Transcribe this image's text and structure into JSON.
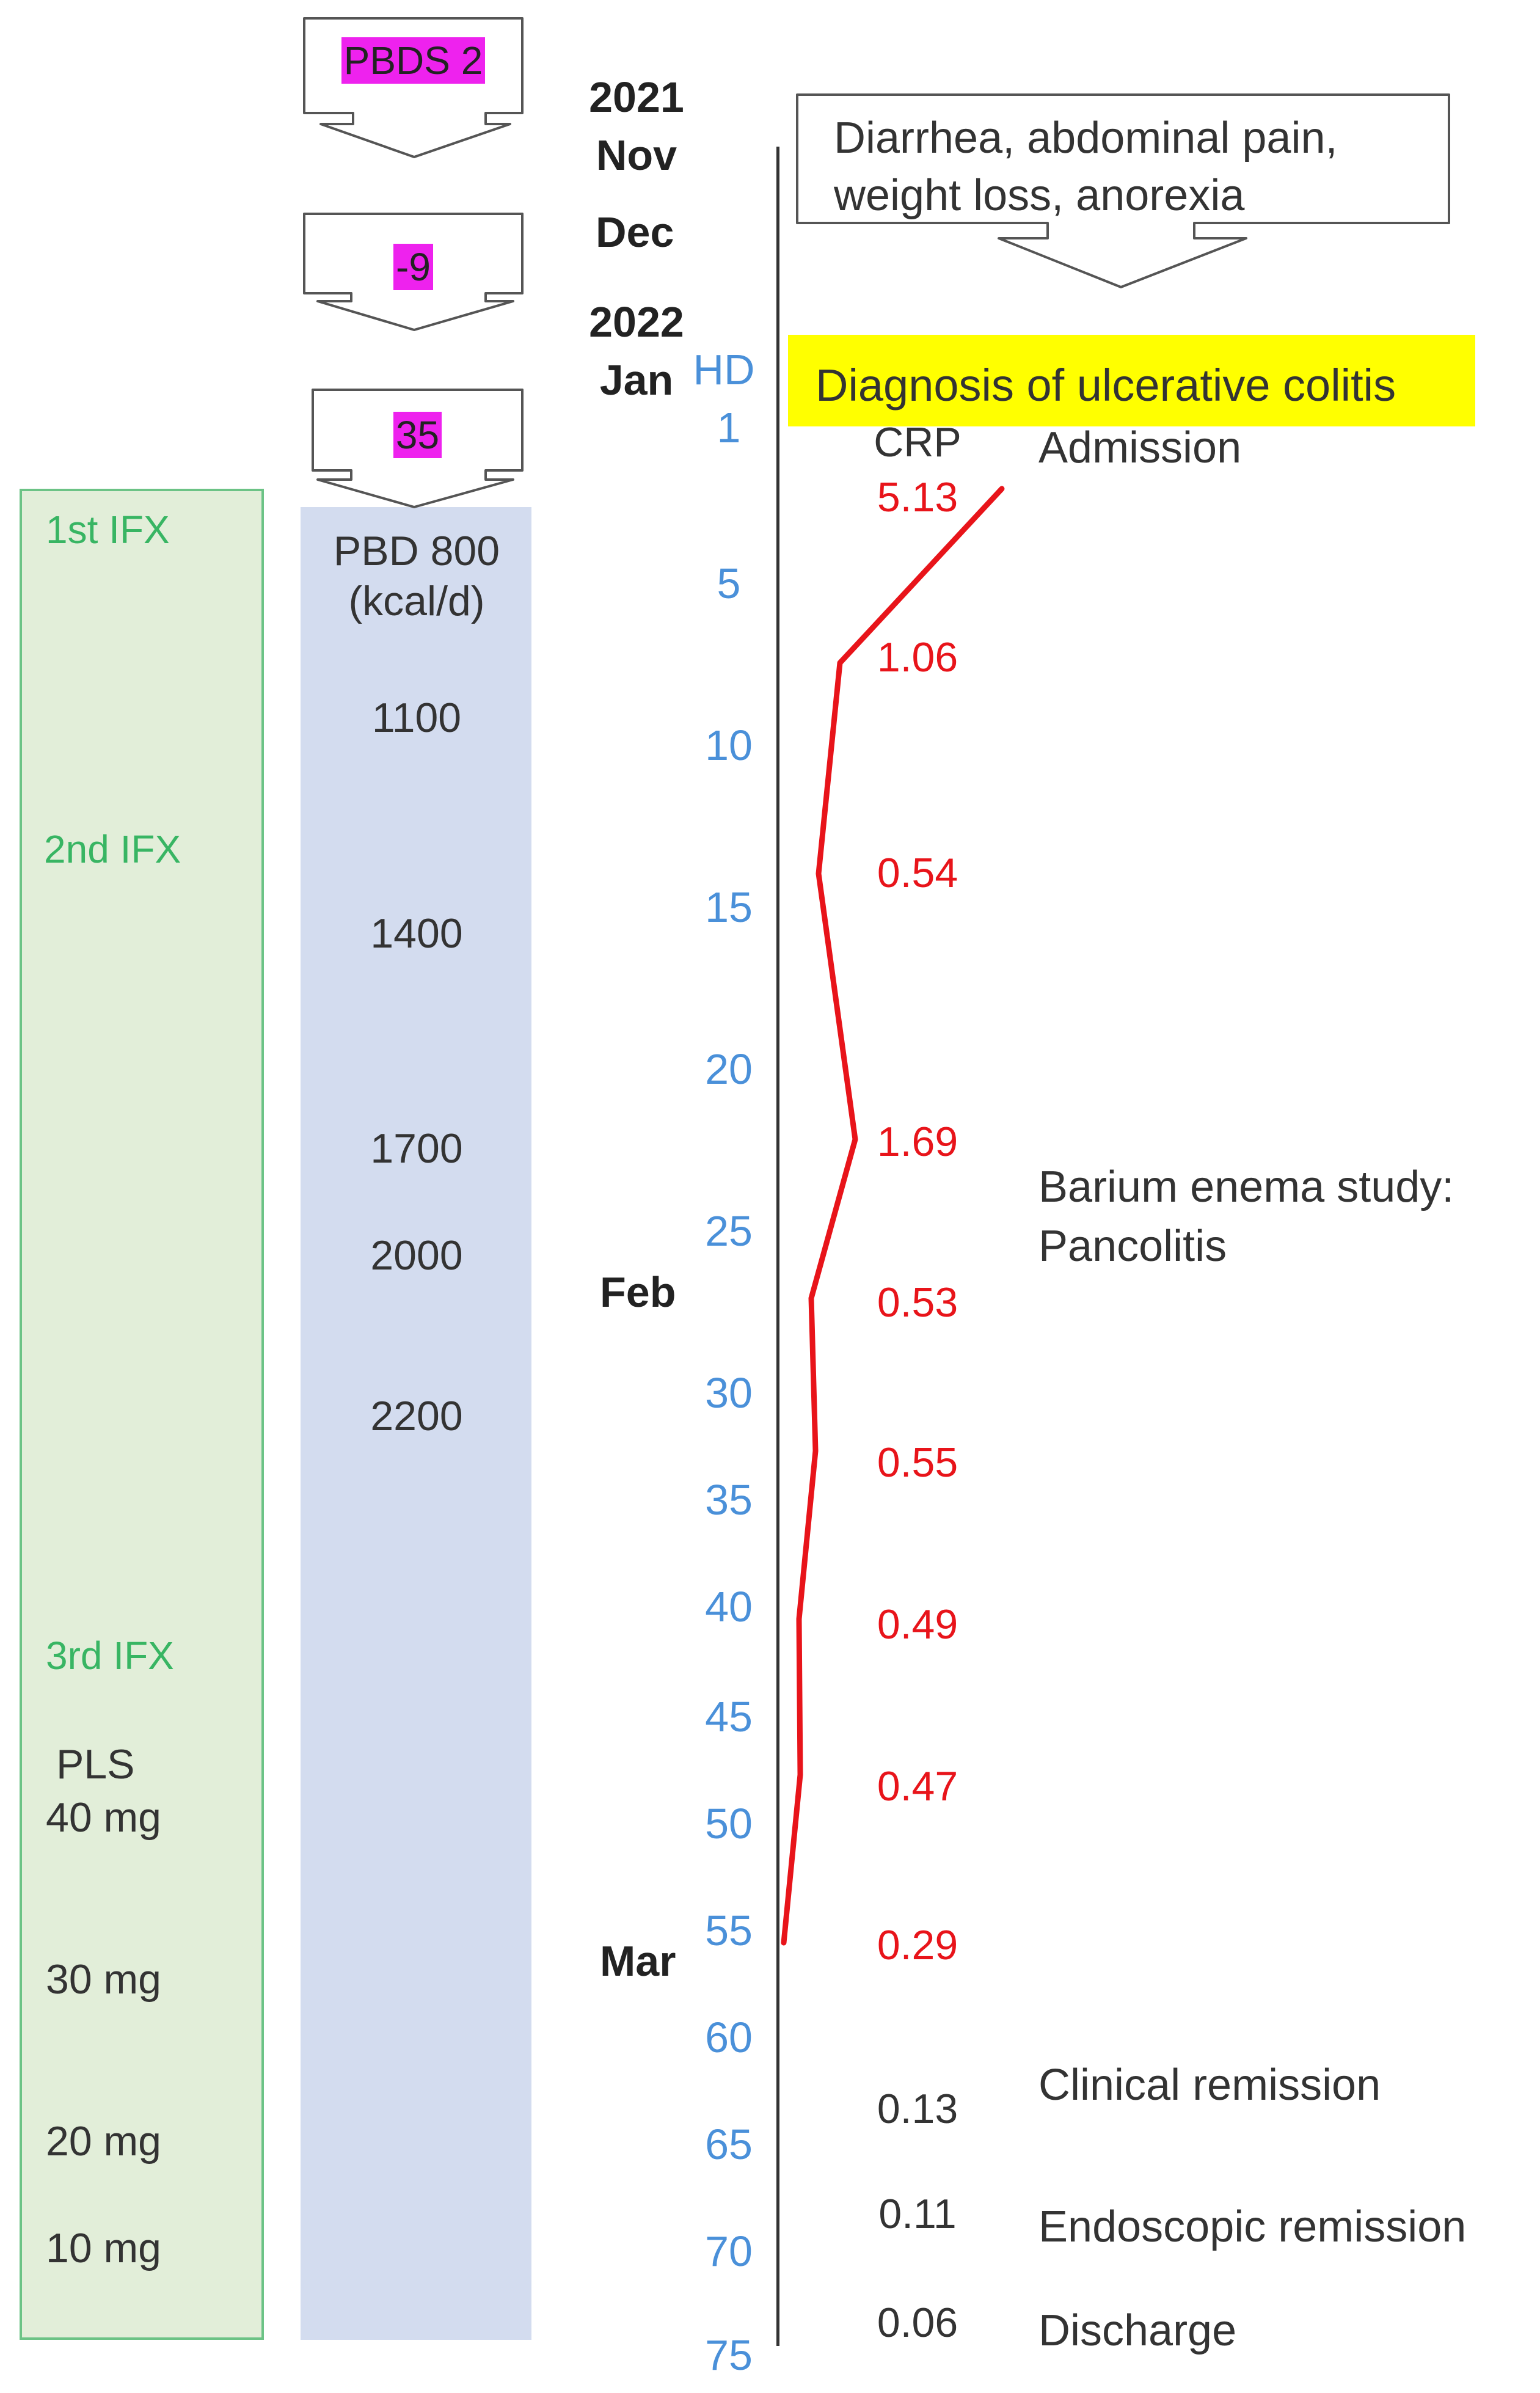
{
  "pbds": {
    "first": "PBDS 2",
    "second": "-9",
    "third": "35"
  },
  "months": [
    {
      "label": "2021\nNov"
    },
    {
      "label": "Dec"
    },
    {
      "label": "2022\nJan"
    },
    {
      "label": "Feb"
    },
    {
      "label": "Mar"
    }
  ],
  "hd": {
    "header": "HD",
    "ticks": [
      "1",
      "5",
      "10",
      "15",
      "20",
      "25",
      "30",
      "35",
      "40",
      "45",
      "50",
      "55",
      "60",
      "65",
      "70",
      "75"
    ]
  },
  "symptoms": "Diarrhea, abdominal pain,\nweight loss, anorexia",
  "diagnosis": "Diagnosis of ulcerative colitis",
  "crp": {
    "header": "CRP",
    "values": [
      "5.13",
      "1.06",
      "0.54",
      "1.69",
      "0.53",
      "0.55",
      "0.49",
      "0.47",
      "0.29",
      "0.13",
      "0.11",
      "0.06"
    ],
    "line_color": "#e8141a"
  },
  "events": [
    {
      "label": "Admission"
    },
    {
      "label": "Barium enema study:\nPancolitis"
    },
    {
      "label": "Clinical remission"
    },
    {
      "label": "Endoscopic remission"
    },
    {
      "label": "Discharge"
    }
  ],
  "ifx": [
    "1st IFX",
    "2nd IFX",
    "3rd IFX"
  ],
  "pls": {
    "header": "PLS",
    "doses": [
      "40 mg",
      "30 mg",
      "20 mg",
      "10 mg"
    ]
  },
  "pbd": {
    "header": "PBD 800\n(kcal/d)",
    "steps": [
      "1100",
      "1400",
      "1700",
      "2000",
      "2200"
    ]
  },
  "colors": {
    "ifx_box_fill": "#e2eed9",
    "ifx_box_border": "#6cc386",
    "pbd_fill": "#d3dcef",
    "highlight_magenta": "#ee22ee",
    "diagnosis_yellow": "#ffff00",
    "hd_blue": "#4a90d9",
    "crp_red": "#e8141a"
  }
}
